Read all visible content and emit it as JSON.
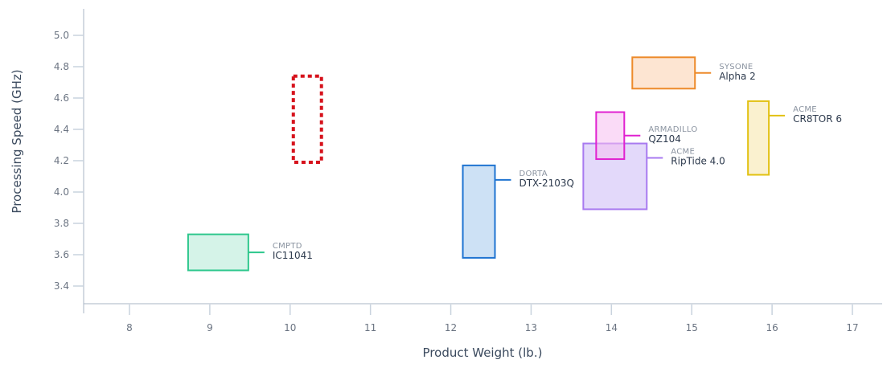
{
  "chart_data": {
    "type": "range-box",
    "title": "",
    "xlabel": "Product Weight (lb.)",
    "ylabel": "Processing Speed (GHz)",
    "xlim": [
      7.45,
      17.35
    ],
    "ylim": [
      3.29,
      5.17
    ],
    "x_ticks": [
      "8",
      "9",
      "10",
      "11",
      "12",
      "13",
      "14",
      "15",
      "16",
      "17"
    ],
    "y_ticks": [
      "3.4",
      "3.6",
      "3.8",
      "4.0",
      "4.2",
      "4.4",
      "4.6",
      "4.8",
      "5.0"
    ],
    "grid": false,
    "legend": "inline labels",
    "series": [
      {
        "brand": "CMPTD",
        "name": "IC11041",
        "x_min": 8.73,
        "x_max": 9.48,
        "y_min": 3.5,
        "y_max": 3.73,
        "color": "#2dc78c",
        "fill": "#d5f3e8",
        "style": "solid"
      },
      {
        "brand": "",
        "name": "",
        "x_min": 10.04,
        "x_max": 10.39,
        "y_min": 4.19,
        "y_max": 4.74,
        "color": "#d6121c",
        "fill": "none",
        "style": "dotted"
      },
      {
        "brand": "DORTA",
        "name": "DTX-2103Q",
        "x_min": 12.15,
        "x_max": 12.55,
        "y_min": 3.58,
        "y_max": 4.17,
        "color": "#1f74d1",
        "fill": "#cde1f5",
        "style": "solid"
      },
      {
        "brand": "ACME",
        "name": "RipTide 4.0",
        "x_min": 13.65,
        "x_max": 14.44,
        "y_min": 3.89,
        "y_max": 4.31,
        "color": "#a87af0",
        "fill": "#e3d9fa",
        "style": "solid"
      },
      {
        "brand": "ARMADILLO",
        "name": "QZ104",
        "x_min": 13.81,
        "x_max": 14.16,
        "y_min": 4.21,
        "y_max": 4.51,
        "color": "#e021d0",
        "fill": "rgba(246,190,240,0.55)",
        "style": "solid"
      },
      {
        "brand": "SYSONE",
        "name": "Alpha 2",
        "x_min": 14.26,
        "x_max": 15.04,
        "y_min": 4.66,
        "y_max": 4.86,
        "color": "#ed8a2a",
        "fill": "#fde5d2",
        "style": "solid"
      },
      {
        "brand": "ACME",
        "name": "CR8TOR 6",
        "x_min": 15.7,
        "x_max": 15.96,
        "y_min": 4.11,
        "y_max": 4.58,
        "color": "#e2c112",
        "fill": "#faf1cf",
        "style": "solid"
      }
    ]
  },
  "colors": {
    "axis": "#a9b6c6",
    "tick": "#c9d3de"
  }
}
